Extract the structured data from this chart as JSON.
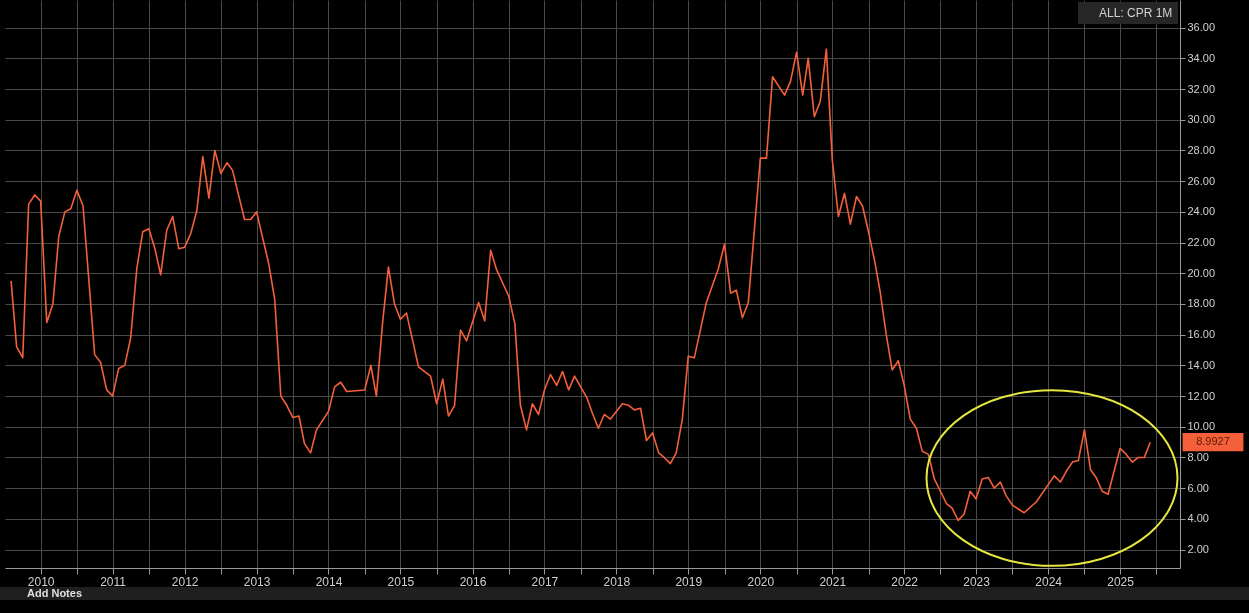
{
  "chart_data": {
    "type": "line",
    "x": [
      "2010-02",
      "2010-03",
      "2010-04",
      "2010-05",
      "2010-06",
      "2010-07",
      "2010-08",
      "2010-09",
      "2010-10",
      "2010-11",
      "2010-12",
      "2011-01",
      "2011-02",
      "2011-04",
      "2011-05",
      "2011-06",
      "2011-07",
      "2011-08",
      "2011-09",
      "2011-10",
      "2011-11",
      "2011-12",
      "2012-01",
      "2012-02",
      "2012-03",
      "2012-04",
      "2012-05",
      "2012-06",
      "2012-07",
      "2012-08",
      "2012-09",
      "2012-10",
      "2012-11",
      "2012-12",
      "2013-01",
      "2013-02",
      "2013-03",
      "2013-05",
      "2013-06",
      "2013-07",
      "2013-09",
      "2013-10",
      "2013-11",
      "2013-12",
      "2014-01",
      "2014-02",
      "2014-03",
      "2014-04",
      "2014-05",
      "2014-07",
      "2014-08",
      "2014-09",
      "2014-10",
      "2015-01",
      "2015-02",
      "2015-03",
      "2015-04",
      "2015-05",
      "2015-06",
      "2015-07",
      "2015-08",
      "2015-10",
      "2015-12",
      "2016-01",
      "2016-02",
      "2016-03",
      "2016-04",
      "2016-05",
      "2016-06",
      "2016-08",
      "2016-09",
      "2016-10",
      "2016-11",
      "2017-01",
      "2017-02",
      "2017-03",
      "2017-04",
      "2017-05",
      "2017-06",
      "2017-07",
      "2017-08",
      "2017-09",
      "2017-10",
      "2017-11",
      "2017-12",
      "2018-02",
      "2018-03",
      "2018-04",
      "2018-05",
      "2018-06",
      "2018-08",
      "2018-09",
      "2018-10",
      "2018-11",
      "2018-12",
      "2019-01",
      "2019-02",
      "2019-03",
      "2019-04",
      "2019-05",
      "2019-06",
      "2019-07",
      "2019-08",
      "2019-10",
      "2019-12",
      "2020-01",
      "2020-02",
      "2020-03",
      "2020-04",
      "2020-05",
      "2020-07",
      "2020-08",
      "2020-09",
      "2020-11",
      "2020-12",
      "2021-01",
      "2021-02",
      "2021-03",
      "2021-04",
      "2021-05",
      "2021-06",
      "2021-07",
      "2021-08",
      "2021-09",
      "2021-10",
      "2021-11",
      "2021-12",
      "2022-01",
      "2022-02",
      "2022-03",
      "2022-04",
      "2022-05",
      "2022-06",
      "2022-07",
      "2022-08",
      "2022-09",
      "2022-10",
      "2022-11",
      "2022-12",
      "2023-02",
      "2023-03",
      "2023-04",
      "2023-05",
      "2023-06",
      "2023-07",
      "2023-08",
      "2023-09",
      "2023-10",
      "2023-11",
      "2023-12",
      "2024-01",
      "2024-03",
      "2024-05",
      "2024-08",
      "2024-09",
      "2024-10",
      "2024-11",
      "2024-12",
      "2025-01",
      "2025-02",
      "2025-03",
      "2025-04",
      "2025-05",
      "2025-07",
      "2025-08",
      "2025-09",
      "2025-10",
      "2025-11",
      "2025-12"
    ],
    "series": [
      {
        "name": "ALL: CPR 1M",
        "color": "#f4603a",
        "values": [
          19.5,
          15.2,
          14.5,
          24.5,
          25.1,
          24.7,
          16.8,
          18.0,
          22.4,
          24.0,
          24.2,
          25.4,
          24.4,
          14.7,
          14.2,
          12.4,
          12.0,
          13.8,
          14.0,
          15.8,
          20.3,
          22.7,
          22.9,
          21.6,
          19.9,
          22.8,
          23.7,
          21.6,
          21.7,
          22.6,
          24.1,
          27.6,
          24.9,
          28.0,
          26.5,
          27.2,
          26.7,
          23.5,
          23.5,
          24.0,
          20.6,
          18.3,
          12.0,
          11.4,
          10.6,
          10.7,
          8.9,
          8.3,
          9.8,
          11.0,
          12.6,
          12.9,
          12.3,
          12.4,
          14.0,
          12.0,
          16.7,
          20.4,
          18.0,
          17.0,
          17.4,
          13.9,
          13.3,
          11.5,
          13.1,
          10.7,
          11.4,
          16.3,
          15.6,
          18.1,
          16.9,
          21.5,
          20.2,
          18.5,
          16.7,
          11.4,
          9.8,
          11.5,
          10.8,
          12.4,
          13.4,
          12.7,
          13.6,
          12.4,
          13.3,
          11.9,
          10.9,
          9.9,
          10.8,
          10.5,
          11.5,
          11.4,
          11.1,
          11.2,
          9.1,
          9.6,
          8.3,
          8.0,
          7.6,
          8.3,
          10.5,
          14.6,
          14.5,
          18.1,
          20.3,
          21.9,
          18.7,
          18.9,
          17.1,
          18.1,
          27.5,
          27.5,
          32.8,
          31.6,
          32.5,
          34.4,
          31.6,
          34.0,
          30.2,
          31.2,
          34.6,
          27.4,
          23.7,
          25.2,
          23.2,
          25.0,
          24.4,
          22.7,
          20.8,
          18.8,
          16.0,
          13.7,
          14.3,
          12.7,
          10.5,
          9.9,
          8.4,
          8.2,
          6.6,
          5.0,
          4.7,
          3.9,
          4.3,
          5.8,
          5.3,
          6.6,
          6.7,
          6.0,
          6.4,
          5.5,
          4.9,
          4.4,
          5.1,
          6.8,
          6.4,
          7.1,
          7.7,
          7.8,
          9.8,
          7.2,
          6.7,
          5.8,
          5.6,
          8.6,
          8.2,
          7.7,
          8.0,
          8.0,
          8.9927
        ]
      }
    ],
    "xlim": [
      "2010-01",
      "2026-05"
    ],
    "ylim": [
      0.8,
      37.8
    ],
    "xticks": [
      {
        "value": "2010-07-01",
        "label": "2010"
      },
      {
        "value": "2011-01-01",
        "label": null
      },
      {
        "value": "2011-07-01",
        "label": "2011"
      },
      {
        "value": "2012-01-01",
        "label": null
      },
      {
        "value": "2012-07-01",
        "label": "2012"
      },
      {
        "value": "2013-01-01",
        "label": null
      },
      {
        "value": "2013-07-01",
        "label": "2013"
      },
      {
        "value": "2014-01-01",
        "label": null
      },
      {
        "value": "2014-07-01",
        "label": "2014"
      },
      {
        "value": "2015-01-01",
        "label": null
      },
      {
        "value": "2015-07-01",
        "label": "2015"
      },
      {
        "value": "2016-01-01",
        "label": null
      },
      {
        "value": "2016-07-01",
        "label": "2016"
      },
      {
        "value": "2017-01-01",
        "label": null
      },
      {
        "value": "2017-07-01",
        "label": "2017"
      },
      {
        "value": "2018-01-01",
        "label": null
      },
      {
        "value": "2018-07-01",
        "label": "2018"
      },
      {
        "value": "2019-01-01",
        "label": null
      },
      {
        "value": "2019-07-01",
        "label": "2019"
      },
      {
        "value": "2020-01-01",
        "label": null
      },
      {
        "value": "2020-07-01",
        "label": "2020"
      },
      {
        "value": "2021-01-01",
        "label": null
      },
      {
        "value": "2021-07-01",
        "label": "2021"
      },
      {
        "value": "2022-01-01",
        "label": null
      },
      {
        "value": "2022-07-01",
        "label": "2022"
      },
      {
        "value": "2023-01-01",
        "label": null
      },
      {
        "value": "2023-07-01",
        "label": "2023"
      },
      {
        "value": "2024-01-01",
        "label": null
      },
      {
        "value": "2024-07-01",
        "label": "2024"
      },
      {
        "value": "2025-01-01",
        "label": null
      },
      {
        "value": "2025-07-01",
        "label": "2025"
      },
      {
        "value": "2026-01-01",
        "label": null
      }
    ],
    "yticks": [
      {
        "value": 2,
        "label": "2.00"
      },
      {
        "value": 4,
        "label": "4.00"
      },
      {
        "value": 6,
        "label": "6.00"
      },
      {
        "value": 8,
        "label": "8.00"
      },
      {
        "value": 10,
        "label": "10.00"
      },
      {
        "value": 12,
        "label": "12.00"
      },
      {
        "value": 14,
        "label": "14.00"
      },
      {
        "value": 16,
        "label": "16.00"
      },
      {
        "value": 18,
        "label": "18.00"
      },
      {
        "value": 20,
        "label": "20.00"
      },
      {
        "value": 22,
        "label": "22.00"
      },
      {
        "value": 24,
        "label": "24.00"
      },
      {
        "value": 26,
        "label": "26.00"
      },
      {
        "value": 28,
        "label": "28.00"
      },
      {
        "value": 30,
        "label": "30.00"
      },
      {
        "value": 32,
        "label": "32.00"
      },
      {
        "value": 34,
        "label": "34.00"
      },
      {
        "value": 36,
        "label": "36.00"
      }
    ],
    "grid": true,
    "legend": "top right",
    "annotations": [
      "8.9927",
      "Add Notes"
    ]
  }
}
